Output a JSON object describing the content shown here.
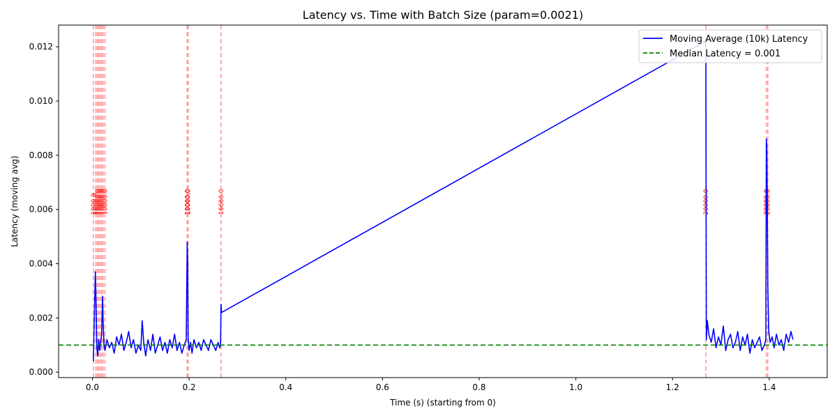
{
  "chart_data": {
    "type": "line",
    "title": "Latency vs. Time with Batch Size (param=0.0021)",
    "xlabel": "Time (s) (starting from 0)",
    "ylabel": "Latency (moving avg)",
    "xlim": [
      -0.07,
      1.52
    ],
    "ylim": [
      -0.0002,
      0.0128
    ],
    "x_ticks": [
      0.0,
      0.2,
      0.4,
      0.6,
      0.8,
      1.0,
      1.2,
      1.4
    ],
    "x_tick_labels": [
      "0.0",
      "0.2",
      "0.4",
      "0.6",
      "0.8",
      "1.0",
      "1.2",
      "1.4"
    ],
    "y_ticks": [
      0.0,
      0.002,
      0.004,
      0.006,
      0.008,
      0.01,
      0.012
    ],
    "y_tick_labels": [
      "0.000",
      "0.002",
      "0.004",
      "0.006",
      "0.008",
      "0.010",
      "0.012"
    ],
    "grid": false,
    "legend": {
      "placement": "top-right",
      "entries": [
        {
          "label": "Moving Average (10k) Latency",
          "color": "#0000ff",
          "style": "solid"
        },
        {
          "label": "Median Latency = 0.001",
          "color": "#008000",
          "style": "dashed"
        }
      ]
    },
    "median_line": {
      "y": 0.001,
      "color": "#008000"
    },
    "batch_markers": {
      "color": "#ff9999",
      "label_color": "#ff0000",
      "label_y": 0.0058,
      "x": [
        0.002,
        0.007,
        0.01,
        0.013,
        0.016,
        0.019,
        0.022,
        0.026,
        0.196,
        0.198,
        0.266,
        1.269,
        1.394,
        1.397
      ],
      "labels": [
        "1000.0",
        "5000.0",
        "10000.0",
        "10000.0",
        "10000.0",
        "10000.0",
        "10000.0",
        "10000.0",
        "10000.0",
        "10000.0",
        "16666.0",
        "20000.0",
        "20000.0",
        "20000.0"
      ]
    },
    "series": [
      {
        "name": "Moving Average (10k) Latency",
        "color": "#0000ff",
        "x": [
          0.002,
          0.004,
          0.006,
          0.007,
          0.009,
          0.011,
          0.013,
          0.015,
          0.017,
          0.019,
          0.021,
          0.022,
          0.024,
          0.026,
          0.03,
          0.035,
          0.04,
          0.045,
          0.05,
          0.055,
          0.06,
          0.065,
          0.07,
          0.075,
          0.08,
          0.085,
          0.09,
          0.095,
          0.1,
          0.103,
          0.106,
          0.11,
          0.115,
          0.12,
          0.125,
          0.13,
          0.135,
          0.14,
          0.145,
          0.15,
          0.155,
          0.16,
          0.165,
          0.17,
          0.175,
          0.18,
          0.185,
          0.19,
          0.194,
          0.196,
          0.197,
          0.198,
          0.2,
          0.203,
          0.206,
          0.21,
          0.215,
          0.22,
          0.225,
          0.23,
          0.235,
          0.24,
          0.245,
          0.25,
          0.255,
          0.26,
          0.263,
          0.265,
          0.266,
          0.267,
          1.268,
          1.269,
          1.27,
          1.272,
          1.275,
          1.28,
          1.285,
          1.29,
          1.295,
          1.3,
          1.305,
          1.31,
          1.315,
          1.32,
          1.325,
          1.33,
          1.335,
          1.34,
          1.345,
          1.35,
          1.355,
          1.36,
          1.365,
          1.37,
          1.375,
          1.38,
          1.385,
          1.39,
          1.393,
          1.394,
          1.395,
          1.396,
          1.397,
          1.399,
          1.402,
          1.406,
          1.41,
          1.415,
          1.42,
          1.425,
          1.43,
          1.435,
          1.44,
          1.445,
          1.449
        ],
        "y": [
          0.0004,
          0.0021,
          0.0037,
          0.003,
          0.0009,
          0.0006,
          0.0012,
          0.0008,
          0.0011,
          0.0014,
          0.0028,
          0.0019,
          0.001,
          0.0008,
          0.0012,
          0.0009,
          0.0011,
          0.0007,
          0.0013,
          0.001,
          0.0014,
          0.0008,
          0.0011,
          0.0015,
          0.0009,
          0.0012,
          0.0007,
          0.001,
          0.0008,
          0.0019,
          0.0011,
          0.0006,
          0.0012,
          0.0008,
          0.0014,
          0.0007,
          0.001,
          0.0013,
          0.0008,
          0.0011,
          0.0007,
          0.0012,
          0.0009,
          0.0014,
          0.0008,
          0.0011,
          0.0007,
          0.001,
          0.0012,
          0.0048,
          0.004,
          0.0013,
          0.0008,
          0.0011,
          0.0007,
          0.0012,
          0.0009,
          0.0011,
          0.0008,
          0.0012,
          0.001,
          0.0008,
          0.0012,
          0.001,
          0.0008,
          0.0011,
          0.0009,
          0.001,
          0.0025,
          0.0022,
          0.0122,
          0.0118,
          0.0012,
          0.0019,
          0.0014,
          0.0011,
          0.0016,
          0.0009,
          0.0013,
          0.001,
          0.0017,
          0.0008,
          0.0012,
          0.0014,
          0.0009,
          0.0011,
          0.0015,
          0.0008,
          0.0013,
          0.001,
          0.0014,
          0.0007,
          0.0012,
          0.0009,
          0.0011,
          0.0013,
          0.0008,
          0.001,
          0.0012,
          0.0086,
          0.0082,
          0.006,
          0.0032,
          0.0015,
          0.0011,
          0.0013,
          0.0009,
          0.0014,
          0.001,
          0.0012,
          0.0008,
          0.0014,
          0.0011,
          0.0015,
          0.0012
        ]
      }
    ]
  }
}
